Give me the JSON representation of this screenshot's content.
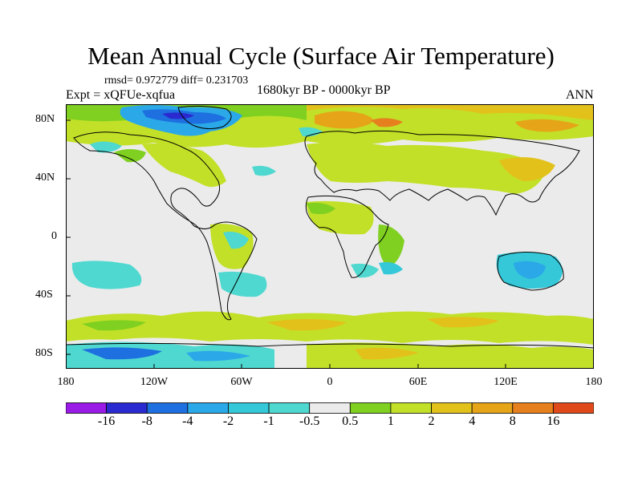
{
  "title": "Mean Annual Cycle (Surface Air Temperature)",
  "stats": "rmsd= 0.972779 diff= 0.231703",
  "experiment": "Expt = xQFUe-xqfua",
  "period": "1680kyr BP - 0000kyr BP",
  "season": "ANN",
  "map": {
    "y_axis": [
      "80N",
      "40N",
      "0",
      "40S",
      "80S"
    ],
    "x_axis": [
      "180",
      "120W",
      "60W",
      "0",
      "60E",
      "120E",
      "180"
    ]
  },
  "colorbar": {
    "labels": [
      "-16",
      "-8",
      "-4",
      "-2",
      "-1",
      "-0.5",
      "0.5",
      "1",
      "2",
      "4",
      "8",
      "16"
    ],
    "colors": [
      "#9a1ae6",
      "#2a2ad0",
      "#1e6fe0",
      "#2aa8e8",
      "#34c8d8",
      "#4ed8d0",
      "#ebebeb",
      "#7fd020",
      "#c2e028",
      "#e2c21a",
      "#e6a418",
      "#e67f1e",
      "#e04a1a"
    ]
  }
}
